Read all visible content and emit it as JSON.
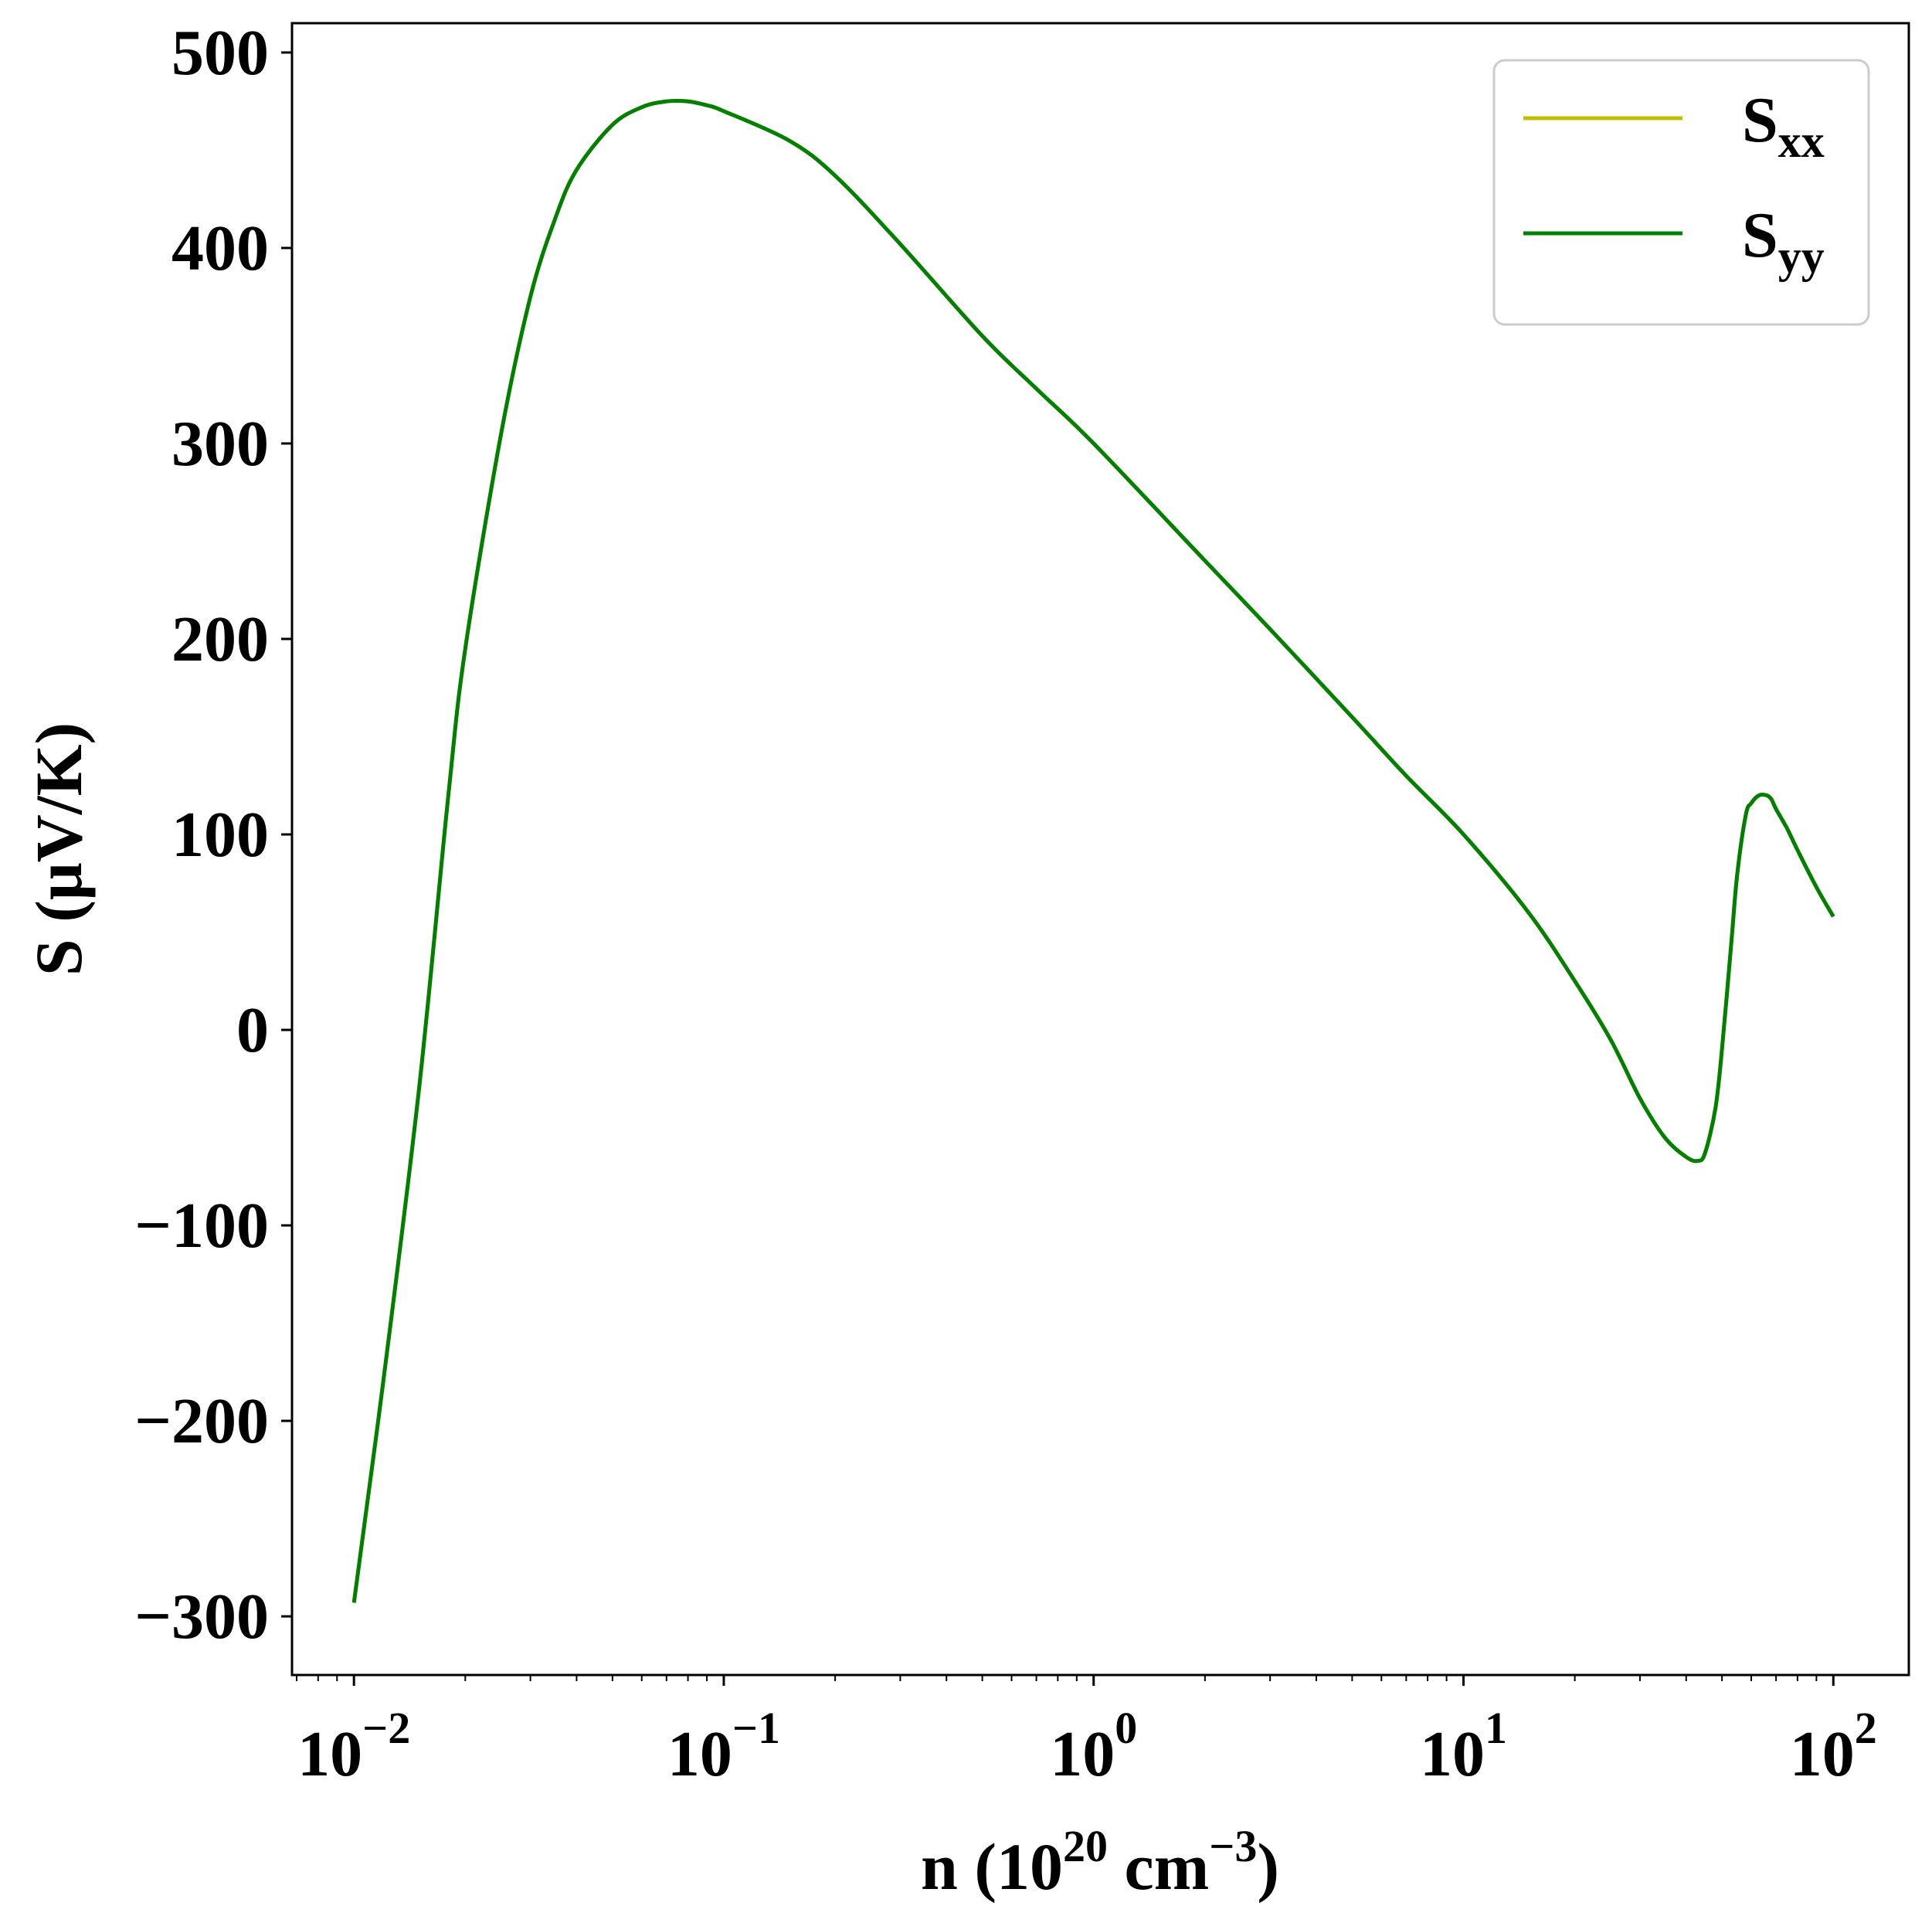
{
  "chart_data": {
    "type": "line",
    "xscale": "log",
    "xlabel": {
      "base": "n (10",
      "exp1": "20",
      "mid": " cm",
      "exp2": "−3",
      "end": ")"
    },
    "ylabel": "S (μV/K)",
    "xlim": [
      0.0068,
      160
    ],
    "ylim": [
      -330,
      515
    ],
    "grid": false,
    "legend": {
      "placement": "top-right"
    },
    "xticks": [
      {
        "value": 0.01,
        "base": "10",
        "exp": "−2"
      },
      {
        "value": 0.1,
        "base": "10",
        "exp": "−1"
      },
      {
        "value": 1,
        "base": "10",
        "exp": "0"
      },
      {
        "value": 10,
        "base": "10",
        "exp": "1"
      },
      {
        "value": 100,
        "base": "10",
        "exp": "2"
      }
    ],
    "yticks": [
      {
        "value": 500,
        "label": "500"
      },
      {
        "value": 400,
        "label": "400"
      },
      {
        "value": 300,
        "label": "300"
      },
      {
        "value": 200,
        "label": "200"
      },
      {
        "value": 100,
        "label": "100"
      },
      {
        "value": 0,
        "label": "0"
      },
      {
        "value": -100,
        "label": "−100"
      },
      {
        "value": -200,
        "label": "−200"
      },
      {
        "value": -300,
        "label": "−300"
      }
    ],
    "series": [
      {
        "name": {
          "base": "S",
          "sub": "xx"
        },
        "color": "#bfbf00",
        "x": [
          0.01,
          0.012,
          0.015,
          0.018,
          0.02,
          0.025,
          0.03,
          0.035,
          0.04,
          0.05,
          0.06,
          0.07,
          0.08,
          0.09,
          0.1,
          0.15,
          0.2,
          0.3,
          0.5,
          0.7,
          1,
          2,
          3,
          5,
          7,
          10,
          15,
          20,
          25,
          30,
          35,
          40,
          43,
          45,
          48,
          50,
          53,
          55,
          58,
          60,
          63,
          66,
          68,
          70,
          75,
          80,
          90,
          100
        ],
        "y": [
          -293,
          -180,
          -30,
          120,
          195,
          305,
          375,
          415,
          440,
          463,
          472,
          475,
          475,
          473,
          470,
          455,
          437,
          402,
          355,
          328,
          300,
          240,
          205,
          160,
          130,
          100,
          60,
          25,
          -5,
          -35,
          -55,
          -65,
          -67,
          -63,
          -40,
          -10,
          45,
          80,
          110,
          116,
          120,
          120,
          118,
          113,
          103,
          92,
          73,
          58
        ]
      },
      {
        "name": {
          "base": "S",
          "sub": "yy"
        },
        "color": "#008000",
        "x": [
          0.01,
          0.012,
          0.015,
          0.018,
          0.02,
          0.025,
          0.03,
          0.035,
          0.04,
          0.05,
          0.06,
          0.07,
          0.08,
          0.09,
          0.1,
          0.15,
          0.2,
          0.3,
          0.5,
          0.7,
          1,
          2,
          3,
          5,
          7,
          10,
          15,
          20,
          25,
          30,
          35,
          40,
          43,
          45,
          48,
          50,
          53,
          55,
          58,
          60,
          63,
          66,
          68,
          70,
          75,
          80,
          90,
          100
        ],
        "y": [
          -293,
          -180,
          -30,
          120,
          195,
          305,
          375,
          415,
          440,
          463,
          472,
          475,
          475,
          473,
          470,
          455,
          437,
          402,
          355,
          328,
          300,
          240,
          205,
          160,
          130,
          100,
          60,
          25,
          -5,
          -35,
          -55,
          -65,
          -67,
          -63,
          -40,
          -10,
          45,
          80,
          110,
          116,
          120,
          120,
          118,
          113,
          103,
          92,
          73,
          58
        ]
      }
    ]
  }
}
